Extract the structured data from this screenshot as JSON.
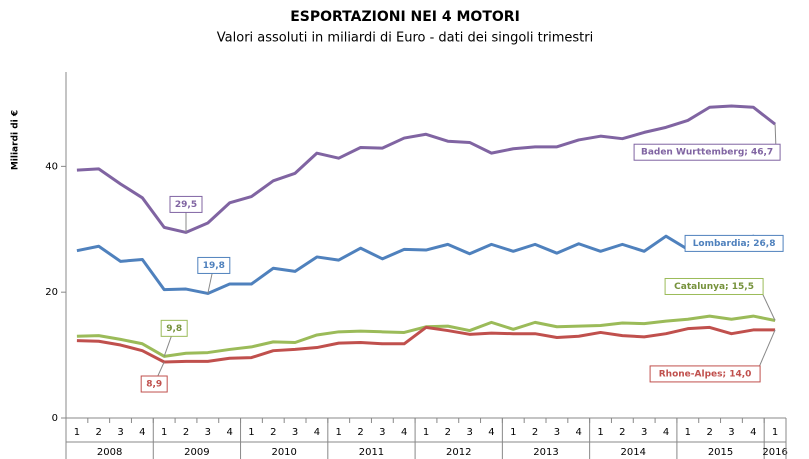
{
  "chart_data": {
    "type": "line",
    "title": "ESPORTAZIONI NEI 4 MOTORI",
    "subtitle": "Valori assoluti in miliardi di Euro - dati dei singoli trimestri",
    "y_label": "Miliardi di €",
    "categories": [
      "1",
      "2",
      "3",
      "4",
      "1",
      "2",
      "3",
      "4",
      "1",
      "2",
      "3",
      "4",
      "1",
      "2",
      "3",
      "4",
      "1",
      "2",
      "3",
      "4",
      "1",
      "2",
      "3",
      "4",
      "1",
      "2",
      "3",
      "4",
      "1",
      "2",
      "3",
      "4",
      "1"
    ],
    "x_groups": [
      "2008",
      "2009",
      "2010",
      "2011",
      "2012",
      "2013",
      "2014",
      "2015",
      "2016"
    ],
    "ylim": [
      0,
      55
    ],
    "yticks": [
      0,
      20,
      40
    ],
    "series": [
      {
        "name": "Baden Wurttemberg",
        "color": "#8064a2",
        "values": [
          39.4,
          39.6,
          37.2,
          35,
          30.3,
          29.5,
          31,
          34.2,
          35.2,
          37.7,
          38.9,
          42.1,
          41.3,
          43,
          42.9,
          44.5,
          45.1,
          44,
          43.8,
          42.1,
          42.8,
          43.1,
          43.1,
          44.2,
          44.8,
          44.4,
          45.4,
          46.2,
          47.3,
          49.4,
          49.6,
          49.4,
          46.7
        ],
        "value_labels": [
          null,
          null,
          null,
          null,
          null,
          "29,5",
          null,
          null,
          null,
          null,
          null,
          null,
          null,
          null,
          null,
          null,
          null,
          null,
          null,
          null,
          null,
          null,
          null,
          null,
          null,
          null,
          null,
          null,
          null,
          null,
          null,
          null,
          "Baden Wurttemberg; 46,7"
        ]
      },
      {
        "name": "Lombardia",
        "color": "#4f81bd",
        "values": [
          26.6,
          27.3,
          24.9,
          25.2,
          20.4,
          20.5,
          19.8,
          21.3,
          21.3,
          23.8,
          23.3,
          25.6,
          25.1,
          27,
          25.3,
          26.8,
          26.7,
          27.6,
          26.1,
          27.6,
          26.5,
          27.6,
          26.2,
          27.7,
          26.5,
          27.6,
          26.5,
          28.9,
          26.8,
          28.8,
          26.8,
          28.9,
          26.8
        ],
        "value_labels": [
          null,
          null,
          null,
          null,
          null,
          null,
          "19,8",
          null,
          null,
          null,
          null,
          null,
          null,
          null,
          null,
          null,
          null,
          null,
          null,
          null,
          null,
          null,
          null,
          null,
          null,
          null,
          null,
          null,
          null,
          null,
          null,
          null,
          "Lombardia; 26,8"
        ]
      },
      {
        "name": "Catalunya",
        "color": "#9bbb59",
        "values": [
          13,
          13.1,
          12.5,
          11.8,
          9.8,
          10.3,
          10.4,
          10.9,
          11.3,
          12.1,
          12,
          13.2,
          13.7,
          13.8,
          13.7,
          13.6,
          14.5,
          14.6,
          13.9,
          15.2,
          14.1,
          15.2,
          14.5,
          14.6,
          14.7,
          15.1,
          15,
          15.4,
          15.7,
          16.2,
          15.7,
          16.2,
          15.5
        ],
        "value_labels": [
          null,
          null,
          null,
          null,
          "9,8",
          null,
          null,
          null,
          null,
          null,
          null,
          null,
          null,
          null,
          null,
          null,
          null,
          null,
          null,
          null,
          null,
          null,
          null,
          null,
          null,
          null,
          null,
          null,
          null,
          null,
          null,
          null,
          "Catalunya; 15,5"
        ]
      },
      {
        "name": "Rhone-Alpes",
        "color": "#c0504d",
        "values": [
          12.3,
          12.2,
          11.6,
          10.7,
          8.9,
          9,
          9,
          9.5,
          9.6,
          10.7,
          10.9,
          11.2,
          11.9,
          12,
          11.8,
          11.8,
          14.4,
          13.9,
          13.3,
          13.5,
          13.4,
          13.4,
          12.8,
          13,
          13.6,
          13.1,
          12.9,
          13.4,
          14.2,
          14.4,
          13.4,
          14,
          14
        ],
        "value_labels": [
          null,
          null,
          null,
          null,
          "8,9",
          null,
          null,
          null,
          null,
          null,
          null,
          null,
          null,
          null,
          null,
          null,
          null,
          null,
          null,
          null,
          null,
          null,
          null,
          null,
          null,
          null,
          null,
          null,
          null,
          null,
          null,
          null,
          "Rhone-Alpes; 14,0"
        ]
      }
    ]
  }
}
